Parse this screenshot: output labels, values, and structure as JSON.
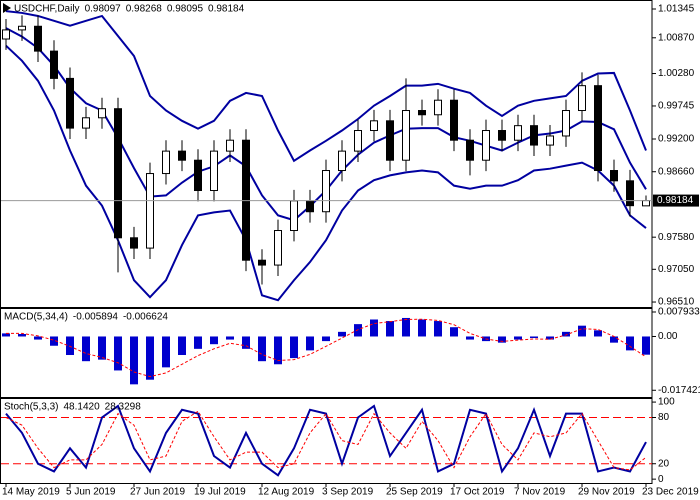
{
  "chart_data": [
    {
      "type": "candlestick",
      "title": "USDCHF,Daily",
      "categories": [
        "14 May 2019",
        null,
        null,
        null,
        "5 Jun 2019",
        null,
        null,
        null,
        "27 Jun 2019",
        null,
        null,
        null,
        "19 Jul 2019",
        null,
        null,
        null,
        "12 Aug 2019",
        null,
        null,
        null,
        "3 Sep 2019",
        null,
        null,
        null,
        "25 Sep 2019",
        null,
        null,
        null,
        "17 Oct 2019",
        null,
        null,
        null,
        "7 Nov 2019",
        null,
        null,
        null,
        "29 Nov 2019",
        null,
        null,
        null,
        "23 Dec 2019"
      ],
      "open": [
        1.0085,
        1.01,
        1.0106,
        1.0065,
        1.002,
        0.9938,
        0.9955,
        0.997,
        0.9757,
        0.974,
        0.9863,
        0.99,
        0.9885,
        0.9835,
        0.99,
        0.9918,
        0.972,
        0.9712,
        0.9769,
        0.9818,
        0.98,
        0.9868,
        0.99,
        0.9934,
        0.995,
        0.9885,
        0.9967,
        0.996,
        0.9984,
        0.9918,
        0.9885,
        0.9934,
        0.9918,
        0.9942,
        0.991,
        0.9925,
        0.9967,
        1.0008,
        0.9868,
        0.9851,
        0.98097
      ],
      "high": [
        1.0118,
        1.0124,
        1.0124,
        1.0083,
        1.0038,
        0.9973,
        0.9988,
        0.9988,
        0.9775,
        0.9881,
        0.9918,
        0.9918,
        0.9903,
        0.9918,
        0.9936,
        0.9936,
        0.9738,
        0.9787,
        0.9836,
        0.9836,
        0.9886,
        0.9918,
        0.9952,
        0.9968,
        0.9968,
        1.002,
        0.9985,
        1.0002,
        1.0002,
        0.9936,
        0.9952,
        0.9952,
        0.996,
        0.996,
        0.9943,
        0.9985,
        1.003,
        1.0026,
        0.9886,
        0.9869,
        0.98268
      ],
      "low": [
        1.0067,
        1.0082,
        1.0047,
        1.0002,
        0.992,
        0.992,
        0.9937,
        0.97,
        0.9722,
        0.9722,
        0.9845,
        0.9867,
        0.9817,
        0.9817,
        0.9882,
        0.9702,
        0.968,
        0.9694,
        0.9751,
        0.9782,
        0.9782,
        0.985,
        0.9882,
        0.9916,
        0.9867,
        0.9867,
        0.9942,
        0.9942,
        0.99,
        0.986,
        0.9867,
        0.99,
        0.99,
        0.9892,
        0.9892,
        0.9907,
        0.9949,
        0.985,
        0.9833,
        0.9792,
        0.98095
      ],
      "close": [
        1.01,
        1.0106,
        1.0065,
        1.002,
        0.9938,
        0.9955,
        0.997,
        0.9757,
        0.974,
        0.9863,
        0.99,
        0.9885,
        0.9835,
        0.99,
        0.9918,
        0.972,
        0.9712,
        0.9769,
        0.9818,
        0.98,
        0.9868,
        0.99,
        0.9934,
        0.995,
        0.9885,
        0.9967,
        0.996,
        0.9984,
        0.9918,
        0.9885,
        0.9934,
        0.9918,
        0.9942,
        0.991,
        0.9925,
        0.9967,
        1.0008,
        0.9868,
        0.9851,
        0.981,
        0.98184
      ],
      "series": [
        {
          "color": "#0000a0",
          "style": "solid",
          "values": [
            1.0131,
            1.0128,
            1.0123,
            1.0115,
            1.0107,
            1.0115,
            1.0123,
            1.009,
            1.0057,
            0.9991,
            0.9967,
            0.995,
            0.9937,
            0.995,
            0.9983,
            0.9996,
            0.9991,
            0.9934,
            0.9884,
            0.9901,
            0.9917,
            0.9934,
            0.9953,
            0.9975,
            0.9991,
            1.0008,
            1.0008,
            1.0011,
            1.0003,
            0.9996,
            0.9975,
            0.9958,
            0.9975,
            0.9983,
            0.9987,
            0.9991,
            1.0016,
            1.0028,
            1.0029,
            0.9967,
            0.9901
          ]
        },
        {
          "color": "#0000a0",
          "style": "solid",
          "values": [
            1.0103,
            1.0089,
            1.007,
            1.0041,
            1.0004,
            0.9979,
            0.9967,
            0.9922,
            0.9872,
            0.9825,
            0.9827,
            0.9848,
            0.9866,
            0.9875,
            0.9893,
            0.9875,
            0.9827,
            0.9794,
            0.9786,
            0.9809,
            0.9835,
            0.9868,
            0.9894,
            0.9914,
            0.9926,
            0.9937,
            0.9938,
            0.9938,
            0.9923,
            0.9917,
            0.9909,
            0.9901,
            0.9914,
            0.9926,
            0.9929,
            0.9934,
            0.9949,
            0.9948,
            0.9936,
            0.9881,
            0.9837
          ]
        },
        {
          "color": "#0000a0",
          "style": "solid",
          "values": [
            1.0074,
            1.0049,
            1.0016,
            0.9967,
            0.9901,
            0.9843,
            0.981,
            0.9753,
            0.9687,
            0.9659,
            0.9687,
            0.9745,
            0.9794,
            0.9799,
            0.9802,
            0.9753,
            0.9662,
            0.9654,
            0.9687,
            0.9717,
            0.9753,
            0.9802,
            0.9835,
            0.9852,
            0.986,
            0.9865,
            0.9868,
            0.9865,
            0.9843,
            0.9838,
            0.9843,
            0.9843,
            0.9852,
            0.9868,
            0.9871,
            0.9876,
            0.9881,
            0.9868,
            0.9843,
            0.9794,
            0.9773
          ]
        }
      ],
      "ylim": [
        0.96428,
        1.01477
      ],
      "yticks": [
        1.01345,
        {
          "value": 1.0087,
          "label": "1.00870"
        },
        {
          "value": 1.0028,
          "label": "1.00280"
        },
        0.99745,
        {
          "value": 0.992,
          "label": "0.99200"
        },
        {
          "value": 0.9866,
          "label": "0.98660"
        },
        {
          "value": 0.9758,
          "label": "0.97580"
        },
        {
          "value": 0.9705,
          "label": "0.97050"
        },
        {
          "value": 0.9651,
          "label": "0.96510"
        }
      ]
    },
    {
      "type": "bar",
      "title": "MACD(5,34,4)",
      "series": [
        {
          "color": "#0000cd",
          "style": "histogram",
          "values": [
            0.001,
            0.0008,
            -0.001,
            -0.003,
            -0.006,
            -0.008,
            -0.0075,
            -0.011,
            -0.0155,
            -0.014,
            -0.01,
            -0.006,
            -0.004,
            -0.0025,
            -0.001,
            -0.004,
            -0.008,
            -0.009,
            -0.007,
            -0.0045,
            -0.0015,
            0.0015,
            0.004,
            0.0055,
            0.005,
            0.006,
            0.0055,
            0.005,
            0.003,
            -0.001,
            -0.0015,
            -0.002,
            -0.001,
            -0.0005,
            -0.001,
            0.0015,
            0.0035,
            0.002,
            -0.002,
            -0.0045,
            -0.005894
          ]
        },
        {
          "color": "#ff0000",
          "style": "dashed",
          "values": [
            0.001,
            0.001,
            0.0002,
            -0.0012,
            -0.0032,
            -0.0055,
            -0.0068,
            -0.0085,
            -0.0115,
            -0.013,
            -0.0118,
            -0.009,
            -0.0062,
            -0.004,
            -0.0022,
            -0.003,
            -0.0058,
            -0.0078,
            -0.0075,
            -0.0058,
            -0.0032,
            -0.0005,
            0.0022,
            0.0042,
            0.0048,
            0.0055,
            0.0056,
            0.0052,
            0.0038,
            0.001,
            -0.0008,
            -0.0016,
            -0.0012,
            -0.0008,
            -0.0009,
            0.0005,
            0.0025,
            0.0023,
            0.0,
            -0.0032,
            -0.006624
          ]
        }
      ],
      "ylim": [
        -0.0196,
        0.0089
      ],
      "yticks": [
        0.007933,
        {
          "value": 0,
          "label": "0.00"
        },
        -0.017421
      ]
    },
    {
      "type": "line",
      "title": "Stoch(5,3,3)",
      "series": [
        {
          "color": "#0000a0",
          "style": "solid",
          "values": [
            85,
            60,
            20,
            10,
            40,
            15,
            80,
            95,
            40,
            10,
            60,
            90,
            85,
            30,
            15,
            60,
            20,
            5,
            40,
            90,
            85,
            20,
            80,
            95,
            30,
            60,
            90,
            10,
            20,
            90,
            85,
            10,
            40,
            90,
            30,
            85,
            85,
            10,
            15,
            10,
            48.142
          ],
          "value_labels": [
            null,
            null,
            null,
            null,
            null,
            null,
            null,
            null,
            null,
            null,
            null,
            null,
            null,
            null,
            null,
            null,
            null,
            null,
            null,
            null,
            null,
            null,
            null,
            null,
            null,
            null,
            null,
            null,
            null,
            null,
            null,
            null,
            null,
            null,
            null,
            null,
            null,
            null,
            null,
            null,
            "48.1420"
          ]
        },
        {
          "color": "#ff0000",
          "style": "dashed",
          "values": [
            80,
            70,
            40,
            15,
            25,
            25,
            45,
            85,
            70,
            25,
            30,
            75,
            88,
            55,
            25,
            35,
            35,
            15,
            20,
            60,
            85,
            50,
            45,
            85,
            60,
            40,
            75,
            50,
            15,
            55,
            85,
            45,
            25,
            60,
            55,
            60,
            85,
            50,
            15,
            12,
            28.3298
          ]
        }
      ],
      "levels": [
        20,
        80
      ],
      "level_color": "#ff0000",
      "ylim": [
        -5,
        104
      ],
      "yticks": [
        100,
        80,
        20,
        0
      ]
    }
  ]
}
